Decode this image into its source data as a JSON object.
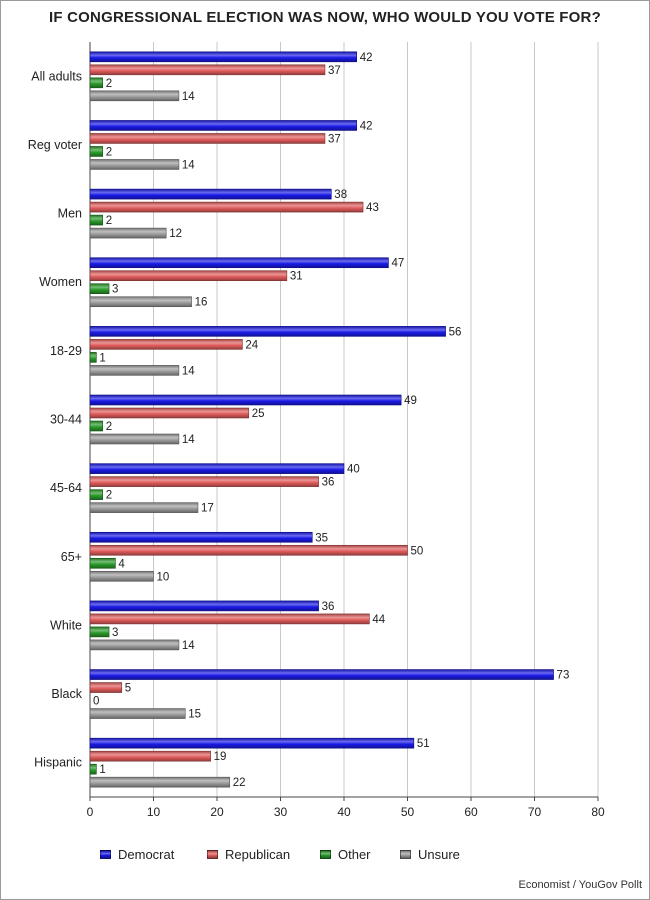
{
  "title": "IF CONGRESSIONAL ELECTION WAS NOW, WHO WOULD YOU VOTE FOR?",
  "credit": "Economist / YouGov Pollt",
  "chart_data": {
    "type": "bar",
    "orientation": "horizontal",
    "categories": [
      "All adults",
      "Reg voter",
      "Men",
      "Women",
      "18-29",
      "30-44",
      "45-64",
      "65+",
      "White",
      "Black",
      "Hispanic"
    ],
    "series": [
      {
        "name": "Democrat",
        "color": "#1a1ae6",
        "values": [
          42,
          42,
          38,
          47,
          56,
          49,
          40,
          35,
          36,
          73,
          51
        ]
      },
      {
        "name": "Republican",
        "color": "#e05c5c",
        "values": [
          37,
          37,
          43,
          31,
          24,
          25,
          36,
          50,
          44,
          5,
          19
        ]
      },
      {
        "name": "Other",
        "color": "#2a9a2a",
        "values": [
          2,
          2,
          2,
          3,
          1,
          2,
          2,
          4,
          3,
          0,
          1
        ]
      },
      {
        "name": "Unsure",
        "color": "#9c9c9c",
        "values": [
          14,
          14,
          12,
          16,
          14,
          14,
          17,
          10,
          14,
          15,
          22
        ]
      }
    ],
    "xlim": [
      0,
      80
    ],
    "xticks": [
      0,
      10,
      20,
      30,
      40,
      50,
      60,
      70,
      80
    ],
    "grid": true,
    "data_labels": true,
    "legend_position": "bottom"
  }
}
